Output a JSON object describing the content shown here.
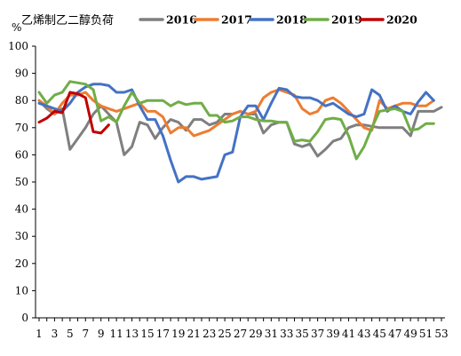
{
  "chart_data": {
    "type": "line",
    "title": "乙烯制乙二醇负荷",
    "ylabel": "%",
    "xlabel": "",
    "ylim": [
      0,
      100
    ],
    "yticks": [
      0,
      10,
      20,
      30,
      40,
      50,
      60,
      70,
      80,
      90,
      100
    ],
    "xticks": [
      1,
      3,
      5,
      7,
      9,
      11,
      13,
      15,
      17,
      19,
      21,
      23,
      25,
      27,
      29,
      31,
      33,
      35,
      37,
      39,
      41,
      43,
      45,
      47,
      49,
      51,
      53
    ],
    "x": [
      1,
      2,
      3,
      4,
      5,
      6,
      7,
      8,
      9,
      10,
      11,
      12,
      13,
      14,
      15,
      16,
      17,
      18,
      19,
      20,
      21,
      22,
      23,
      24,
      25,
      26,
      27,
      28,
      29,
      30,
      31,
      32,
      33,
      34,
      35,
      36,
      37,
      38,
      39,
      40,
      41,
      42,
      43,
      44,
      45,
      46,
      47,
      48,
      49,
      50,
      51,
      52,
      53
    ],
    "grid": false,
    "legend_position": "top",
    "series": [
      {
        "name": "2016",
        "color": "#7f7f7f",
        "values": [
          80,
          77,
          75,
          77,
          62,
          66,
          70,
          75,
          78,
          75,
          72,
          60,
          63,
          72,
          71,
          66,
          70,
          73,
          72,
          69,
          73,
          73,
          71,
          72,
          75,
          75,
          76,
          75,
          75,
          68,
          71,
          72,
          72,
          64,
          63,
          64,
          59.5,
          62,
          65,
          66,
          70,
          71,
          71,
          70.5,
          70,
          70,
          70,
          70,
          67,
          76,
          76,
          76,
          77.5
        ]
      },
      {
        "name": "2017",
        "color": "#ed7d31",
        "values": [
          80,
          78,
          75,
          79,
          82,
          82,
          83,
          80,
          78,
          77,
          76,
          77,
          78,
          79,
          76,
          76,
          74,
          68,
          70,
          70,
          67,
          68,
          69,
          71,
          73,
          75,
          76,
          75,
          76,
          81,
          83,
          84,
          83,
          82,
          77,
          75,
          76,
          80,
          81,
          79,
          76,
          73,
          70,
          69,
          80,
          77,
          78,
          79,
          79,
          78,
          78,
          80,
          null
        ]
      },
      {
        "name": "2018",
        "color": "#4472c4",
        "values": [
          79,
          78,
          77,
          76,
          79,
          83,
          85,
          86,
          86,
          85.5,
          83,
          83,
          84,
          78,
          73,
          73,
          67,
          58,
          50,
          52,
          52,
          51,
          51.5,
          52,
          60,
          61,
          74,
          78,
          78,
          73,
          79,
          84.5,
          84,
          81.5,
          81,
          81,
          80,
          78,
          79,
          77,
          75,
          74,
          75,
          84,
          82,
          76,
          78,
          76,
          75,
          79.5,
          83,
          80,
          null
        ]
      },
      {
        "name": "2019",
        "color": "#70ad47",
        "values": [
          83,
          79,
          82,
          83,
          87,
          86.5,
          86,
          84,
          72.5,
          74,
          72,
          78,
          83,
          79,
          80,
          80,
          80,
          78,
          79.5,
          78.5,
          79,
          79,
          74.5,
          74.5,
          72,
          72.5,
          74,
          74,
          73,
          72.5,
          72.5,
          72,
          72,
          65,
          65.5,
          65,
          68.5,
          73,
          73.5,
          73,
          67,
          58.5,
          63,
          70,
          76,
          76.5,
          77,
          76,
          69,
          69.5,
          71.5,
          71.5,
          null
        ]
      },
      {
        "name": "2020",
        "color": "#c00000",
        "values": [
          72,
          73.5,
          76,
          75.5,
          83,
          82.5,
          81,
          68.5,
          68,
          71,
          null,
          null,
          null,
          null,
          null,
          null,
          null,
          null,
          null,
          null,
          null,
          null,
          null,
          null,
          null,
          null,
          null,
          null,
          null,
          null,
          null,
          null,
          null,
          null,
          null,
          null,
          null,
          null,
          null,
          null,
          null,
          null,
          null,
          null,
          null,
          null,
          null,
          null,
          null,
          null,
          null,
          null,
          null
        ]
      }
    ]
  }
}
